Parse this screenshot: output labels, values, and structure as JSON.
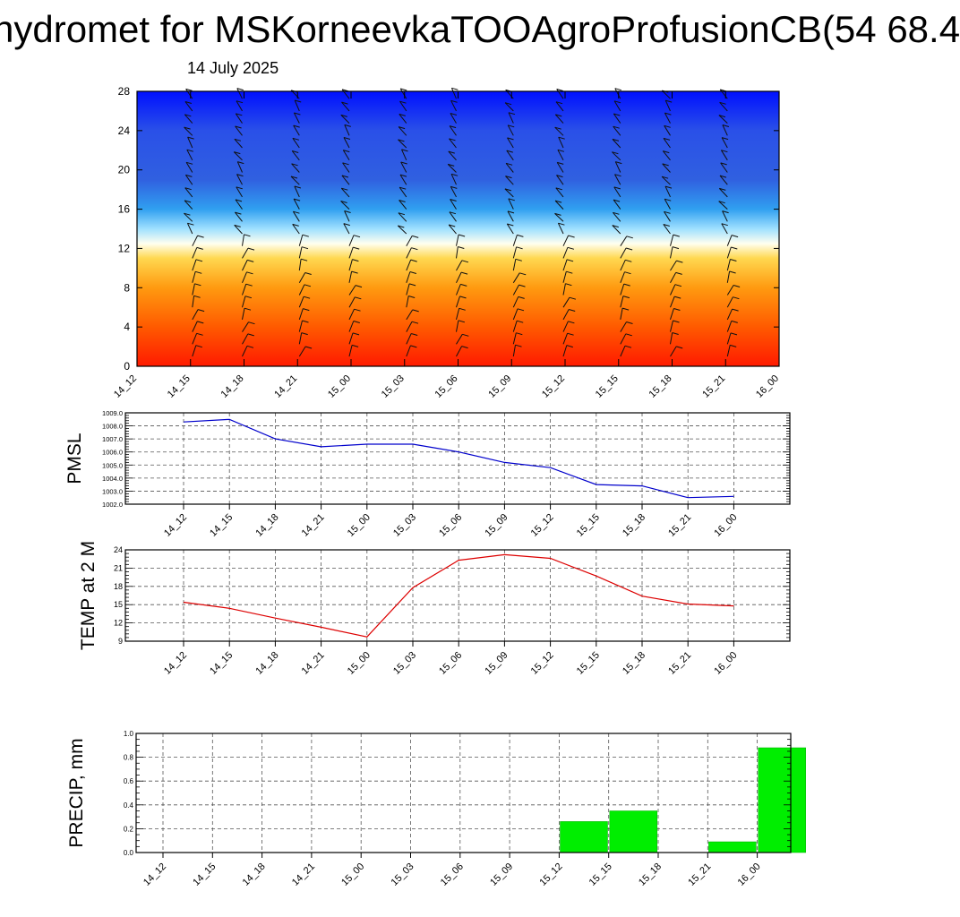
{
  "title": "hydromet for MSKorneevkaTOOAgroProfusionCB(54 68.4",
  "subtitle": "14 July 2025",
  "colors": {
    "pmsl_line": "#0000cc",
    "temp_line": "#dd0000",
    "precip_bar": "#00ee00",
    "grid": "#555555"
  },
  "chart_data": [
    {
      "type": "heatmap",
      "name": "vertical cross-section",
      "x": [
        "14_12",
        "14_15",
        "14_18",
        "14_21",
        "15_00",
        "15_03",
        "15_06",
        "15_09",
        "15_12",
        "15_15",
        "15_18",
        "15_21",
        "16_00"
      ],
      "y_ticks": [
        0,
        4,
        8,
        12,
        16,
        20,
        24,
        28
      ],
      "ylim": [
        0,
        28
      ],
      "color_bands": [
        {
          "level": 0,
          "color": "#ff1a00"
        },
        {
          "level": 4,
          "color": "#ff5a00"
        },
        {
          "level": 8,
          "color": "#ff9a10"
        },
        {
          "level": 11,
          "color": "#ffd850"
        },
        {
          "level": 12.5,
          "color": "#fffff0"
        },
        {
          "level": 14,
          "color": "#9fe0ff"
        },
        {
          "level": 16,
          "color": "#30a0f0"
        },
        {
          "level": 19,
          "color": "#3060e0"
        },
        {
          "level": 24,
          "color": "#2a50e8"
        },
        {
          "level": 28,
          "color": "#0010ff"
        }
      ],
      "wind_barbs": true
    },
    {
      "type": "line",
      "ylabel": "PMSL",
      "x": [
        "14_12",
        "14_15",
        "14_18",
        "14_21",
        "15_00",
        "15_03",
        "15_06",
        "15_09",
        "15_12",
        "15_15",
        "15_18",
        "15_21",
        "16_00"
      ],
      "values": [
        1008.3,
        1008.5,
        1007.0,
        1006.4,
        1006.6,
        1006.6,
        1006.0,
        1005.2,
        1004.8,
        1003.5,
        1003.4,
        1002.5,
        1002.6
      ],
      "y_ticks": [
        "1002.0",
        "1003.0",
        "1004.0",
        "1005.0",
        "1006.0",
        "1007.0",
        "1008.0",
        "1009.0"
      ],
      "ylim": [
        1002,
        1009
      ],
      "grid": true
    },
    {
      "type": "line",
      "ylabel": "TEMP at 2 M",
      "x": [
        "14_12",
        "14_15",
        "14_18",
        "14_21",
        "15_00",
        "15_03",
        "15_06",
        "15_09",
        "15_12",
        "15_15",
        "15_18",
        "15_21",
        "16_00"
      ],
      "values": [
        15.4,
        14.4,
        12.8,
        11.3,
        9.7,
        17.8,
        22.3,
        23.2,
        22.6,
        19.7,
        16.4,
        15.1,
        14.8
      ],
      "y_ticks": [
        "9",
        "12",
        "15",
        "18",
        "21",
        "24"
      ],
      "ylim": [
        9,
        24
      ],
      "grid": true
    },
    {
      "type": "bar",
      "ylabel": "PRECIP, mm",
      "categories": [
        "14_12",
        "14_15",
        "14_18",
        "14_21",
        "15_00",
        "15_03",
        "15_06",
        "15_09",
        "15_12",
        "15_15",
        "15_18",
        "15_21",
        "16_00"
      ],
      "values": [
        0,
        0,
        0,
        0,
        0,
        0,
        0,
        0,
        0.26,
        0.35,
        0,
        0.09,
        0.88
      ],
      "y_ticks": [
        "0.0",
        "0.2",
        "0.4",
        "0.6",
        "0.8",
        "1.0"
      ],
      "ylim": [
        0,
        1.0
      ],
      "grid": true
    }
  ]
}
